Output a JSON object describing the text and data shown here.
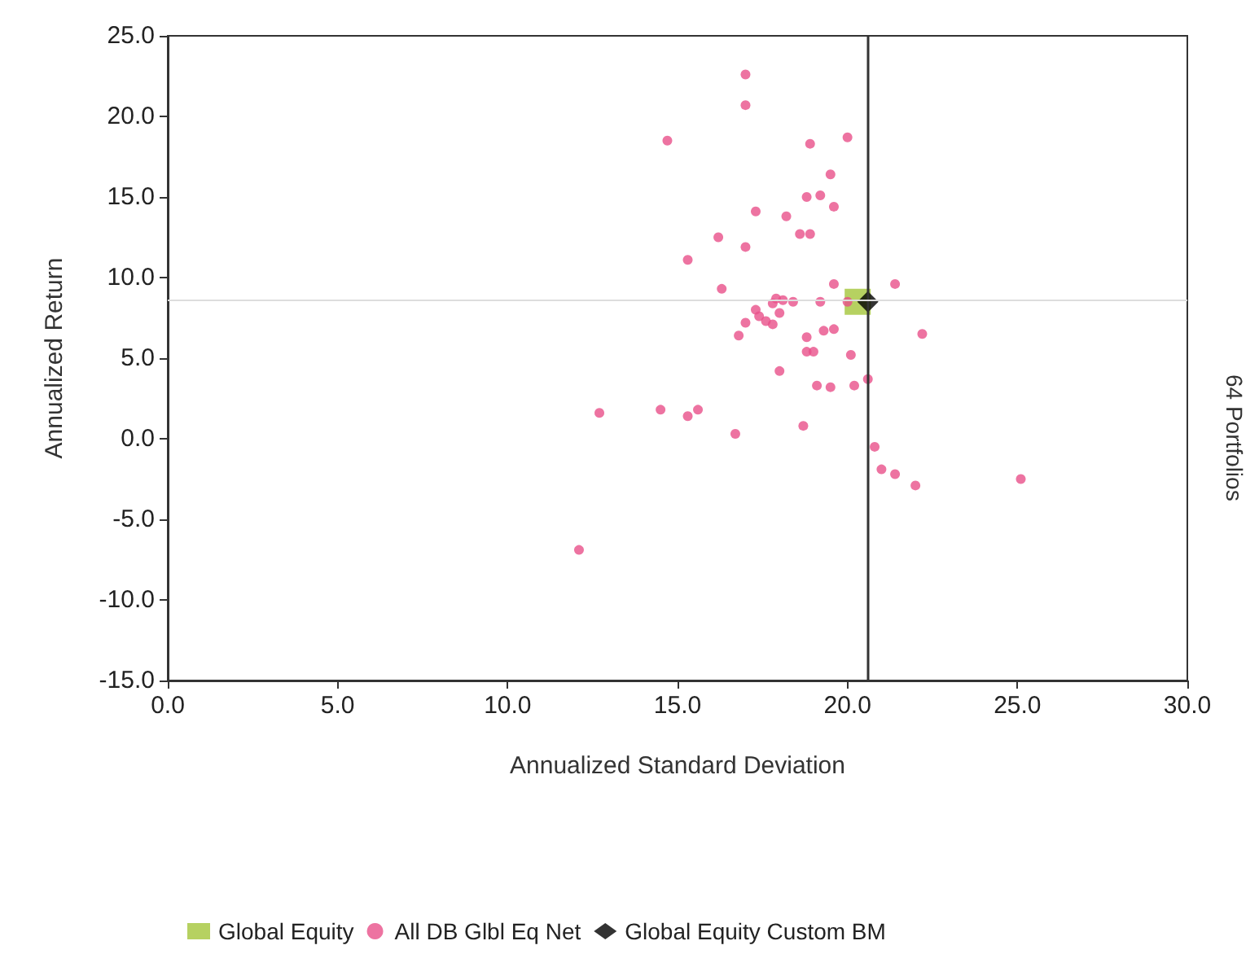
{
  "chart_data": {
    "type": "scatter",
    "xlabel": "Annualized Standard Deviation",
    "ylabel": "Annualized Return",
    "xlim": [
      0,
      30
    ],
    "ylim": [
      -15,
      25
    ],
    "xticks": [
      {
        "value": 0,
        "label": "0.0"
      },
      {
        "value": 5,
        "label": "5.0"
      },
      {
        "value": 10,
        "label": "10.0"
      },
      {
        "value": 15,
        "label": "15.0"
      },
      {
        "value": 20,
        "label": "20.0"
      },
      {
        "value": 25,
        "label": "25.0"
      },
      {
        "value": 30,
        "label": "30.0"
      }
    ],
    "yticks": [
      {
        "value": -15,
        "label": "-15.0"
      },
      {
        "value": -10,
        "label": "-10.0"
      },
      {
        "value": -5,
        "label": "-5.0"
      },
      {
        "value": 0,
        "label": "0.0"
      },
      {
        "value": 5,
        "label": "5.0"
      },
      {
        "value": 10,
        "label": "10.0"
      },
      {
        "value": 15,
        "label": "15.0"
      },
      {
        "value": 20,
        "label": "20.0"
      },
      {
        "value": 25,
        "label": "25.0"
      }
    ],
    "grid": false,
    "legend": "bottom",
    "annotations": [
      "64 Portfolios"
    ],
    "ref_lines": [
      {
        "axis": "x",
        "value": 20.6,
        "label": null,
        "color": "#333333"
      },
      {
        "axis": "y",
        "value": 8.6,
        "label": null,
        "color": "#dddddd"
      }
    ],
    "series": [
      {
        "name": "Global Equity",
        "color": "#a4c639",
        "marker": "square",
        "x": [
          20.3
        ],
        "values": [
          8.5
        ]
      },
      {
        "name": "All DB Glbl Eq Net",
        "color": "#e8508a",
        "marker": "circle",
        "x": [
          17.0,
          17.0,
          14.7,
          20.0,
          18.9,
          19.5,
          18.8,
          19.2,
          19.6,
          17.3,
          18.2,
          18.6,
          18.9,
          16.2,
          17.0,
          15.3,
          16.3,
          19.6,
          21.4,
          17.9,
          18.1,
          18.4,
          19.2,
          20.0,
          17.3,
          17.4,
          17.6,
          17.8,
          18.0,
          17.8,
          17.0,
          16.8,
          18.8,
          19.3,
          19.6,
          18.8,
          19.0,
          20.1,
          18.0,
          19.1,
          19.5,
          20.2,
          20.6,
          12.7,
          14.5,
          15.3,
          15.6,
          16.7,
          18.7,
          20.8,
          21.0,
          21.4,
          22.0,
          25.1,
          12.1,
          22.2
        ],
        "values": [
          22.6,
          20.7,
          18.5,
          18.7,
          18.3,
          16.4,
          15.0,
          15.1,
          14.4,
          14.1,
          13.8,
          12.7,
          12.7,
          12.5,
          11.9,
          11.1,
          9.3,
          9.6,
          9.6,
          8.7,
          8.6,
          8.5,
          8.5,
          8.5,
          8.0,
          7.6,
          7.3,
          7.1,
          7.8,
          8.4,
          7.2,
          6.4,
          6.3,
          6.7,
          6.8,
          5.4,
          5.4,
          5.2,
          4.2,
          3.3,
          3.2,
          3.3,
          3.7,
          1.6,
          1.8,
          1.4,
          1.8,
          0.3,
          0.8,
          -0.5,
          -1.9,
          -2.2,
          -2.9,
          -2.5,
          -6.9,
          6.5
        ]
      },
      {
        "name": "Global Equity Custom BM",
        "color": "#000000",
        "marker": "diamond",
        "x": [
          20.6
        ],
        "values": [
          8.5
        ]
      }
    ]
  }
}
